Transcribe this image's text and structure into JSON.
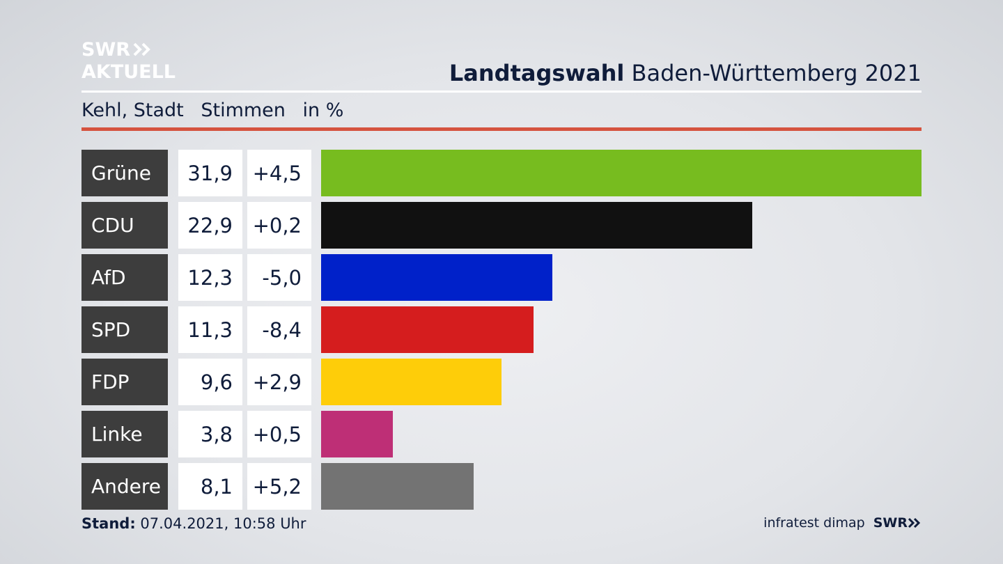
{
  "logo": {
    "line1": "SWR",
    "line2": "AKTUELL"
  },
  "header": {
    "title_bold": "Landtagswahl",
    "title_rest": "Baden-Württemberg 2021"
  },
  "subheader": {
    "region": "Kehl, Stadt",
    "measure": "Stimmen",
    "unit": "in %"
  },
  "colors": {
    "accent_red": "#d5533f"
  },
  "chart_data": {
    "type": "bar",
    "orientation": "horizontal",
    "categories": [
      "Grüne",
      "CDU",
      "AfD",
      "SPD",
      "FDP",
      "Linke",
      "Andere"
    ],
    "values": [
      31.9,
      22.9,
      12.3,
      11.3,
      9.6,
      3.8,
      8.1
    ],
    "value_labels": [
      "31,9",
      "22,9",
      "12,3",
      "11,3",
      "9,6",
      "3,8",
      "8,1"
    ],
    "change_labels": [
      "+4,5",
      "+0,2",
      "-5,0",
      "-8,4",
      "+2,9",
      "+0,5",
      "+5,2"
    ],
    "changes": [
      4.5,
      0.2,
      -5.0,
      -8.4,
      2.9,
      0.5,
      5.2
    ],
    "colors": [
      "#77bc1f",
      "#111111",
      "#0021c9",
      "#d51d1e",
      "#fecd09",
      "#be2f76",
      "#737373"
    ],
    "xlim": [
      0,
      31.9
    ],
    "grid": false,
    "legend": "none"
  },
  "footer": {
    "stand_label": "Stand:",
    "stand_value": "07.04.2021, 10:58 Uhr",
    "source": "infratest dimap",
    "brand": "SWR"
  }
}
